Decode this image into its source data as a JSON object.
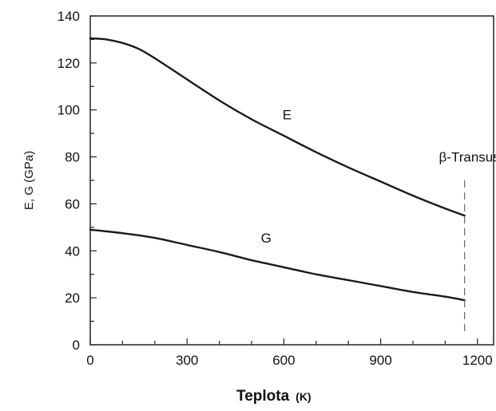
{
  "chart_data": {
    "type": "line",
    "xlabel": "Teplota",
    "xlabel_unit": "(K)",
    "ylabel": "E, G (GPa)",
    "xlim": [
      0,
      1250
    ],
    "ylim": [
      0,
      140
    ],
    "x_ticks": [
      0,
      300,
      600,
      900,
      1200
    ],
    "y_ticks": [
      0,
      20,
      40,
      60,
      80,
      100,
      120,
      140
    ],
    "grid": false,
    "legend": "none",
    "series": [
      {
        "name": "E",
        "label_at": [
          610,
          96
        ],
        "x": [
          0,
          50,
          100,
          150,
          200,
          300,
          400,
          500,
          600,
          700,
          800,
          900,
          1000,
          1100,
          1160
        ],
        "values": [
          130.5,
          130,
          128.5,
          126,
          122,
          113,
          104,
          96,
          89,
          82,
          75.5,
          69.5,
          63.5,
          58,
          55
        ]
      },
      {
        "name": "G",
        "label_at": [
          545,
          43.5
        ],
        "x": [
          0,
          100,
          200,
          300,
          400,
          500,
          600,
          700,
          800,
          900,
          1000,
          1100,
          1160
        ],
        "values": [
          49,
          47.5,
          45.5,
          42.5,
          39.5,
          36,
          33,
          30,
          27.5,
          25,
          22.5,
          20.5,
          19
        ]
      }
    ],
    "annotations": [
      {
        "text": "β-Transus",
        "x": 1160,
        "y": 78
      }
    ],
    "reference_lines": [
      {
        "type": "vertical-dashed",
        "x": 1160,
        "y_range": [
          5,
          70
        ]
      }
    ]
  }
}
